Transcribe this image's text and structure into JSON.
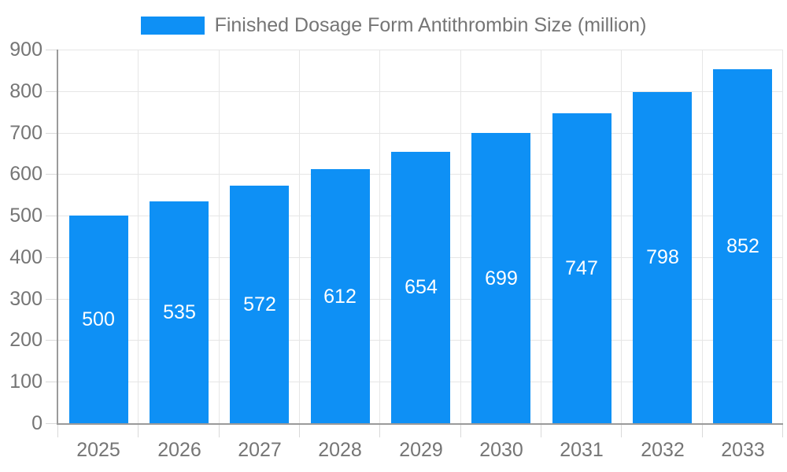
{
  "legend": {
    "label": "Finished Dosage Form Antithrombin Size (million)"
  },
  "chart_data": {
    "type": "bar",
    "title": "",
    "legend_label": "Finished Dosage Form Antithrombin Size (million)",
    "categories": [
      "2025",
      "2026",
      "2027",
      "2028",
      "2029",
      "2030",
      "2031",
      "2032",
      "2033"
    ],
    "values": [
      500,
      535,
      572,
      612,
      654,
      699,
      747,
      798,
      852
    ],
    "value_labels": [
      "500",
      "535",
      "572",
      "612",
      "654",
      "699",
      "747",
      "798",
      "852"
    ],
    "y_tick_labels": [
      "0",
      "100",
      "200",
      "300",
      "400",
      "500",
      "600",
      "700",
      "800",
      "900"
    ],
    "xlabel": "",
    "ylabel": "",
    "ylim": [
      0,
      900
    ],
    "ytick_step": 100,
    "grid": true,
    "legend_position": "top-center",
    "colors": {
      "bar": "#0e90f5",
      "value_label": "#ffffff",
      "axis_text": "#757575",
      "grid_line": "#e6e6e6",
      "tick_line": "#d9d9d9",
      "axis_line": "#9a9a9a",
      "background": "#ffffff"
    }
  }
}
